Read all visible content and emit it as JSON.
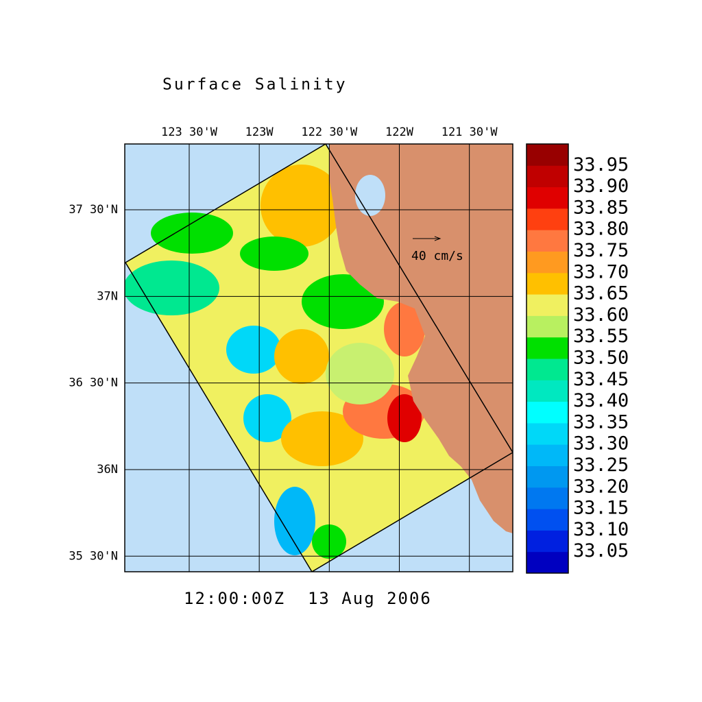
{
  "title": "Surface Salinity",
  "map": {
    "xlim": [
      -123.96,
      -121.19
    ],
    "ylim": [
      35.41,
      37.88
    ],
    "xticks": [
      {
        "value": -123.5,
        "label": "123 30'W"
      },
      {
        "value": -123,
        "label": "123W"
      },
      {
        "value": -122.5,
        "label": "122 30'W"
      },
      {
        "value": -122,
        "label": "122W"
      },
      {
        "value": -121.5,
        "label": "121 30'W"
      }
    ],
    "yticks": [
      {
        "value": 37.5,
        "label": "37 30'N"
      },
      {
        "value": 37,
        "label": "37N"
      },
      {
        "value": 36.5,
        "label": "36 30'N"
      },
      {
        "value": 36,
        "label": "36N"
      },
      {
        "value": 35.5,
        "label": "35 30'N"
      }
    ],
    "grid": true
  },
  "reference_vector": "40 cm/s",
  "timestamp": "12:00:00Z  13 Aug 2006",
  "colorbar": {
    "levels": [
      {
        "value": 33.05,
        "label": "33.05"
      },
      {
        "value": 33.1,
        "label": "33.10"
      },
      {
        "value": 33.15,
        "label": "33.15"
      },
      {
        "value": 33.2,
        "label": "33.20"
      },
      {
        "value": 33.25,
        "label": "33.25"
      },
      {
        "value": 33.3,
        "label": "33.30"
      },
      {
        "value": 33.35,
        "label": "33.35"
      },
      {
        "value": 33.4,
        "label": "33.40"
      },
      {
        "value": 33.45,
        "label": "33.45"
      },
      {
        "value": 33.5,
        "label": "33.50"
      },
      {
        "value": 33.55,
        "label": "33.55"
      },
      {
        "value": 33.6,
        "label": "33.60"
      },
      {
        "value": 33.65,
        "label": "33.65"
      },
      {
        "value": 33.7,
        "label": "33.70"
      },
      {
        "value": 33.75,
        "label": "33.75"
      },
      {
        "value": 33.8,
        "label": "33.80"
      },
      {
        "value": 33.85,
        "label": "33.85"
      },
      {
        "value": 33.9,
        "label": "33.90"
      },
      {
        "value": 33.95,
        "label": "33.95"
      }
    ],
    "colors": [
      "#0000c0",
      "#0020e0",
      "#0050f0",
      "#0078f0",
      "#0098f0",
      "#00b8f8",
      "#00d8f8",
      "#00ffff",
      "#00e8c0",
      "#00e890",
      "#00e000",
      "#b8f060",
      "#f0f060",
      "#ffc000",
      "#ff9a20",
      "#ff7840",
      "#ff4010",
      "#e00000",
      "#c00000",
      "#980000"
    ]
  }
}
